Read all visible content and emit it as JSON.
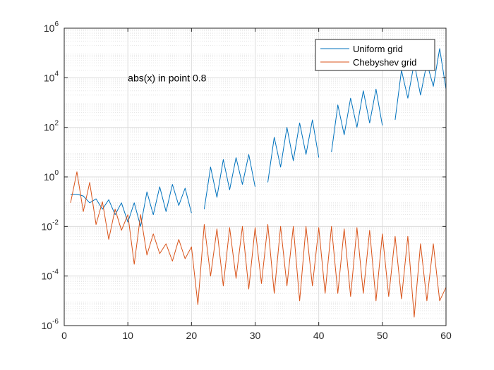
{
  "chart_data": {
    "type": "line",
    "title": "",
    "xlabel": "",
    "ylabel": "",
    "xlim": [
      0,
      60
    ],
    "ylim": [
      1e-06,
      1000000.0
    ],
    "yscale": "log",
    "grid": true,
    "minor_grid": true,
    "legend_position": "top-right",
    "x_ticks": [
      0,
      10,
      20,
      30,
      40,
      50,
      60
    ],
    "y_ticks": [
      {
        "base": "10",
        "exp": "-6",
        "value": 1e-06
      },
      {
        "base": "10",
        "exp": "-4",
        "value": 0.0001
      },
      {
        "base": "10",
        "exp": "-2",
        "value": 0.01
      },
      {
        "base": "10",
        "exp": "0",
        "value": 1
      },
      {
        "base": "10",
        "exp": "2",
        "value": 100
      },
      {
        "base": "10",
        "exp": "4",
        "value": 10000
      },
      {
        "base": "10",
        "exp": "6",
        "value": 1000000
      }
    ],
    "annotations": [
      {
        "text": "abs(x) in point 0.8",
        "x": 10,
        "y": 10000
      }
    ],
    "series": [
      {
        "name": "Uniform grid",
        "color": "#0072BD",
        "x": [
          1,
          2,
          3,
          4,
          5,
          6,
          7,
          8,
          9,
          10,
          11,
          12,
          13,
          14,
          15,
          16,
          17,
          18,
          19,
          20,
          21,
          22,
          23,
          24,
          25,
          26,
          27,
          28,
          29,
          30,
          31,
          32,
          33,
          34,
          35,
          36,
          37,
          38,
          39,
          40,
          41,
          42,
          43,
          44,
          45,
          46,
          47,
          48,
          49,
          50,
          51,
          52,
          53,
          54,
          55,
          56,
          57,
          58,
          59,
          60
        ],
        "y": [
          0.2,
          0.2,
          0.17,
          0.09,
          0.13,
          0.05,
          0.12,
          0.03,
          0.09,
          0.015,
          0.09,
          0.01,
          0.25,
          0.03,
          0.4,
          0.04,
          0.5,
          0.07,
          0.35,
          0.035,
          null,
          0.05,
          2.5,
          0.15,
          5,
          0.3,
          6,
          0.5,
          8,
          0.4,
          null,
          0.6,
          40,
          2.5,
          100,
          4.5,
          150,
          8,
          200,
          6,
          null,
          10,
          800,
          50,
          1500,
          100,
          3000,
          150,
          3500,
          120,
          null,
          200,
          20000,
          1500,
          40000,
          2000,
          40000,
          4500,
          150000,
          3500
        ]
      },
      {
        "name": "Chebyshev grid",
        "color": "#D95319",
        "x": [
          1,
          2,
          3,
          4,
          5,
          6,
          7,
          8,
          9,
          10,
          11,
          12,
          13,
          14,
          15,
          16,
          17,
          18,
          19,
          20,
          21,
          22,
          23,
          24,
          25,
          26,
          27,
          28,
          29,
          30,
          31,
          32,
          33,
          34,
          35,
          36,
          37,
          38,
          39,
          40,
          41,
          42,
          43,
          44,
          45,
          46,
          47,
          48,
          49,
          50,
          51,
          52,
          53,
          54,
          55,
          56,
          57,
          58,
          59,
          60
        ],
        "y": [
          0.09,
          1.6,
          0.04,
          0.6,
          0.012,
          0.1,
          0.003,
          0.05,
          0.007,
          0.03,
          0.0003,
          0.03,
          0.0007,
          0.005,
          0.0008,
          0.002,
          0.0004,
          0.003,
          0.0005,
          0.0015,
          7e-06,
          0.012,
          0.0001,
          0.008,
          4e-05,
          0.009,
          8e-05,
          0.01,
          3e-05,
          0.009,
          5e-05,
          0.012,
          2e-05,
          0.01,
          4e-05,
          0.01,
          1e-05,
          0.01,
          4e-05,
          0.009,
          2e-05,
          0.01,
          2e-05,
          0.008,
          1.5e-05,
          0.009,
          2e-05,
          0.007,
          1e-05,
          0.005,
          1.5e-05,
          0.004,
          1.2e-05,
          0.004,
          2.2e-06,
          0.002,
          1e-05,
          0.002,
          1e-05,
          3.5e-05
        ]
      }
    ]
  }
}
